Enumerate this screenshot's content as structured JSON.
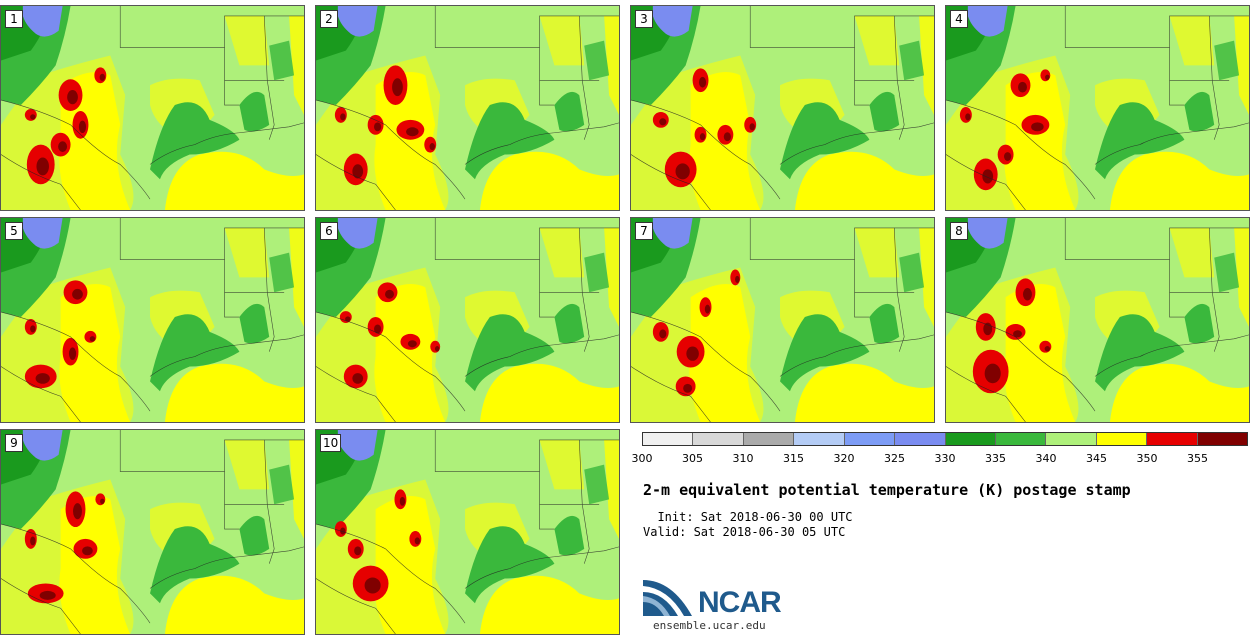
{
  "stamps": [
    {
      "label": "1"
    },
    {
      "label": "2"
    },
    {
      "label": "3"
    },
    {
      "label": "4"
    },
    {
      "label": "5"
    },
    {
      "label": "6"
    },
    {
      "label": "7"
    },
    {
      "label": "8"
    },
    {
      "label": "9"
    },
    {
      "label": "10"
    }
  ],
  "colorbar": {
    "ticks": [
      "300",
      "305",
      "310",
      "315",
      "320",
      "325",
      "330",
      "335",
      "340",
      "345",
      "350",
      "355"
    ],
    "colors": [
      "#f0f0f0",
      "#d8d8d8",
      "#aaaaaa",
      "#b4ccf5",
      "#7d9cf5",
      "#7a8cf0",
      "#1a9a1e",
      "#3ab83c",
      "#aef07a",
      "#ffff00",
      "#e60000",
      "#800000"
    ]
  },
  "title": "2-m equivalent potential temperature (K) postage stamp",
  "init": "  Init: Sat 2018-06-30 00 UTC",
  "valid": "Valid: Sat 2018-06-30 05 UTC",
  "logo": {
    "name": "NCAR",
    "site": "ensemble.ucar.edu"
  },
  "colors": {
    "lime": "#aef07a",
    "yellow": "#ffff00",
    "green": "#3ab83c",
    "dkgreen": "#1a9a1e",
    "blue": "#7a8cf0",
    "red": "#e60000",
    "dkred": "#800000"
  }
}
